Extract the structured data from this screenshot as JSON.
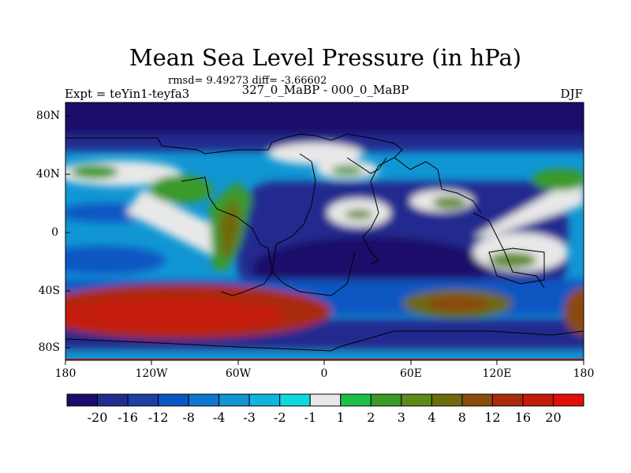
{
  "title": "Mean Sea Level Pressure (in hPa)",
  "stats": "rmsd= 9.49273 diff= -3.66602",
  "left_label": "Expt = teYin1-teyfa3",
  "center_label": "327_0_MaBP - 000_0_MaBP",
  "right_label": "DJF",
  "lat_ticks": [
    "80N",
    "40N",
    "0",
    "40S",
    "80S"
  ],
  "lon_ticks": [
    "180",
    "120W",
    "60W",
    "0",
    "60E",
    "120E",
    "180"
  ],
  "colorbar": {
    "labels": [
      "-20",
      "-16",
      "-12",
      "-8",
      "-4",
      "-3",
      "-2",
      "-1",
      "1",
      "2",
      "3",
      "4",
      "8",
      "12",
      "16",
      "20"
    ],
    "colors": [
      "#1f0a6b",
      "#232b8f",
      "#1e3fa6",
      "#0b56c2",
      "#0f75cf",
      "#1196d4",
      "#0fb5dc",
      "#10d8e0",
      "#e8e8e8",
      "#1ec04a",
      "#3a9a2a",
      "#5e8a1c",
      "#6d6b10",
      "#8c4a0c",
      "#aa2a0c",
      "#c41a0a",
      "#e01008"
    ]
  }
}
